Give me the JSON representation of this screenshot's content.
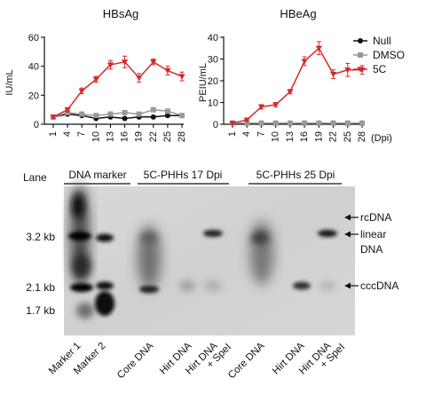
{
  "chart_data": [
    {
      "type": "line",
      "title": "HBsAg",
      "ylabel": "IU/mL",
      "xlabel": "",
      "ylim": [
        0,
        60
      ],
      "yticks": [
        0,
        20,
        40,
        60
      ],
      "x": [
        1,
        4,
        7,
        10,
        13,
        16,
        19,
        22,
        25,
        28
      ],
      "xtick_labels": [
        "1",
        "4",
        "7",
        "10",
        "13",
        "16",
        "19",
        "22",
        "25",
        "28"
      ],
      "series": [
        {
          "name": "Null",
          "color": "#111111",
          "marker": "circle",
          "values": [
            5,
            7,
            6,
            4,
            5,
            4,
            5,
            5,
            6,
            6
          ],
          "errors": [
            0.6,
            0.6,
            0.6,
            0.5,
            0.5,
            0.5,
            0.5,
            0.5,
            0.6,
            0.6
          ]
        },
        {
          "name": "DMSO",
          "color": "#999999",
          "marker": "square",
          "values": [
            5,
            8,
            7,
            6,
            7,
            8,
            7,
            10,
            9,
            6
          ],
          "errors": [
            0.8,
            0.8,
            0.8,
            0.7,
            0.8,
            0.8,
            0.8,
            1,
            1,
            0.7
          ]
        },
        {
          "name": "5C",
          "color": "#d42a2a",
          "marker": "triangle-down",
          "values": [
            5,
            10,
            23,
            31,
            41,
            43,
            32,
            43,
            37,
            33
          ],
          "errors": [
            1,
            1.5,
            2,
            2,
            3,
            4,
            3,
            2,
            3,
            3
          ]
        }
      ]
    },
    {
      "type": "line",
      "title": "HBeAg",
      "ylabel": "PEIU/mL",
      "xlabel": "(Dpi)",
      "ylim": [
        0,
        40
      ],
      "yticks": [
        0,
        10,
        20,
        30,
        40
      ],
      "x": [
        1,
        4,
        7,
        10,
        13,
        16,
        19,
        22,
        25,
        28
      ],
      "xtick_labels": [
        "1",
        "4",
        "7",
        "10",
        "13",
        "16",
        "19",
        "22",
        "25",
        "28"
      ],
      "legend": {
        "placement": "right"
      },
      "series": [
        {
          "name": "Null",
          "color": "#111111",
          "marker": "circle",
          "values": [
            0.5,
            0.5,
            0.5,
            0.5,
            0.5,
            0.5,
            0.5,
            0.5,
            0.5,
            0.5
          ],
          "errors": [
            0,
            0,
            0,
            0,
            0,
            0,
            0,
            0,
            0,
            0
          ]
        },
        {
          "name": "DMSO",
          "color": "#999999",
          "marker": "square",
          "values": [
            0.5,
            0.5,
            0.5,
            0.5,
            0.5,
            0.5,
            0.5,
            0.5,
            0.5,
            0.5
          ],
          "errors": [
            0.3,
            0.3,
            0.3,
            0.3,
            0.3,
            0.3,
            0.3,
            0.3,
            0.3,
            0.3
          ]
        },
        {
          "name": "5C",
          "color": "#d42a2a",
          "marker": "triangle-down",
          "values": [
            0.5,
            2,
            8,
            9,
            15,
            29,
            35,
            23,
            25,
            25
          ],
          "errors": [
            0.3,
            0.5,
            1,
            1,
            1,
            2,
            3,
            2,
            3,
            2
          ]
        }
      ]
    }
  ],
  "blot": {
    "lane_header": "Lane",
    "groups": [
      "DNA marker",
      "5C-PHHs 17 Dpi",
      "5C-PHHs 25 Dpi"
    ],
    "size_markers": [
      "3.2 kb",
      "2.1 kb",
      "1.7 kb"
    ],
    "band_annotations": [
      "rcDNA",
      "linear",
      "DNA",
      "cccDNA"
    ],
    "lanes": [
      [
        "Marker 1"
      ],
      [
        "Marker 2"
      ],
      [
        "Core DNA"
      ],
      [
        "Hirt DNA"
      ],
      [
        "Hirt DNA",
        "+ SpeI"
      ],
      [
        "Core DNA"
      ],
      [
        "Hirt DNA"
      ],
      [
        "Hirt DNA",
        "+ SpeI"
      ]
    ]
  }
}
